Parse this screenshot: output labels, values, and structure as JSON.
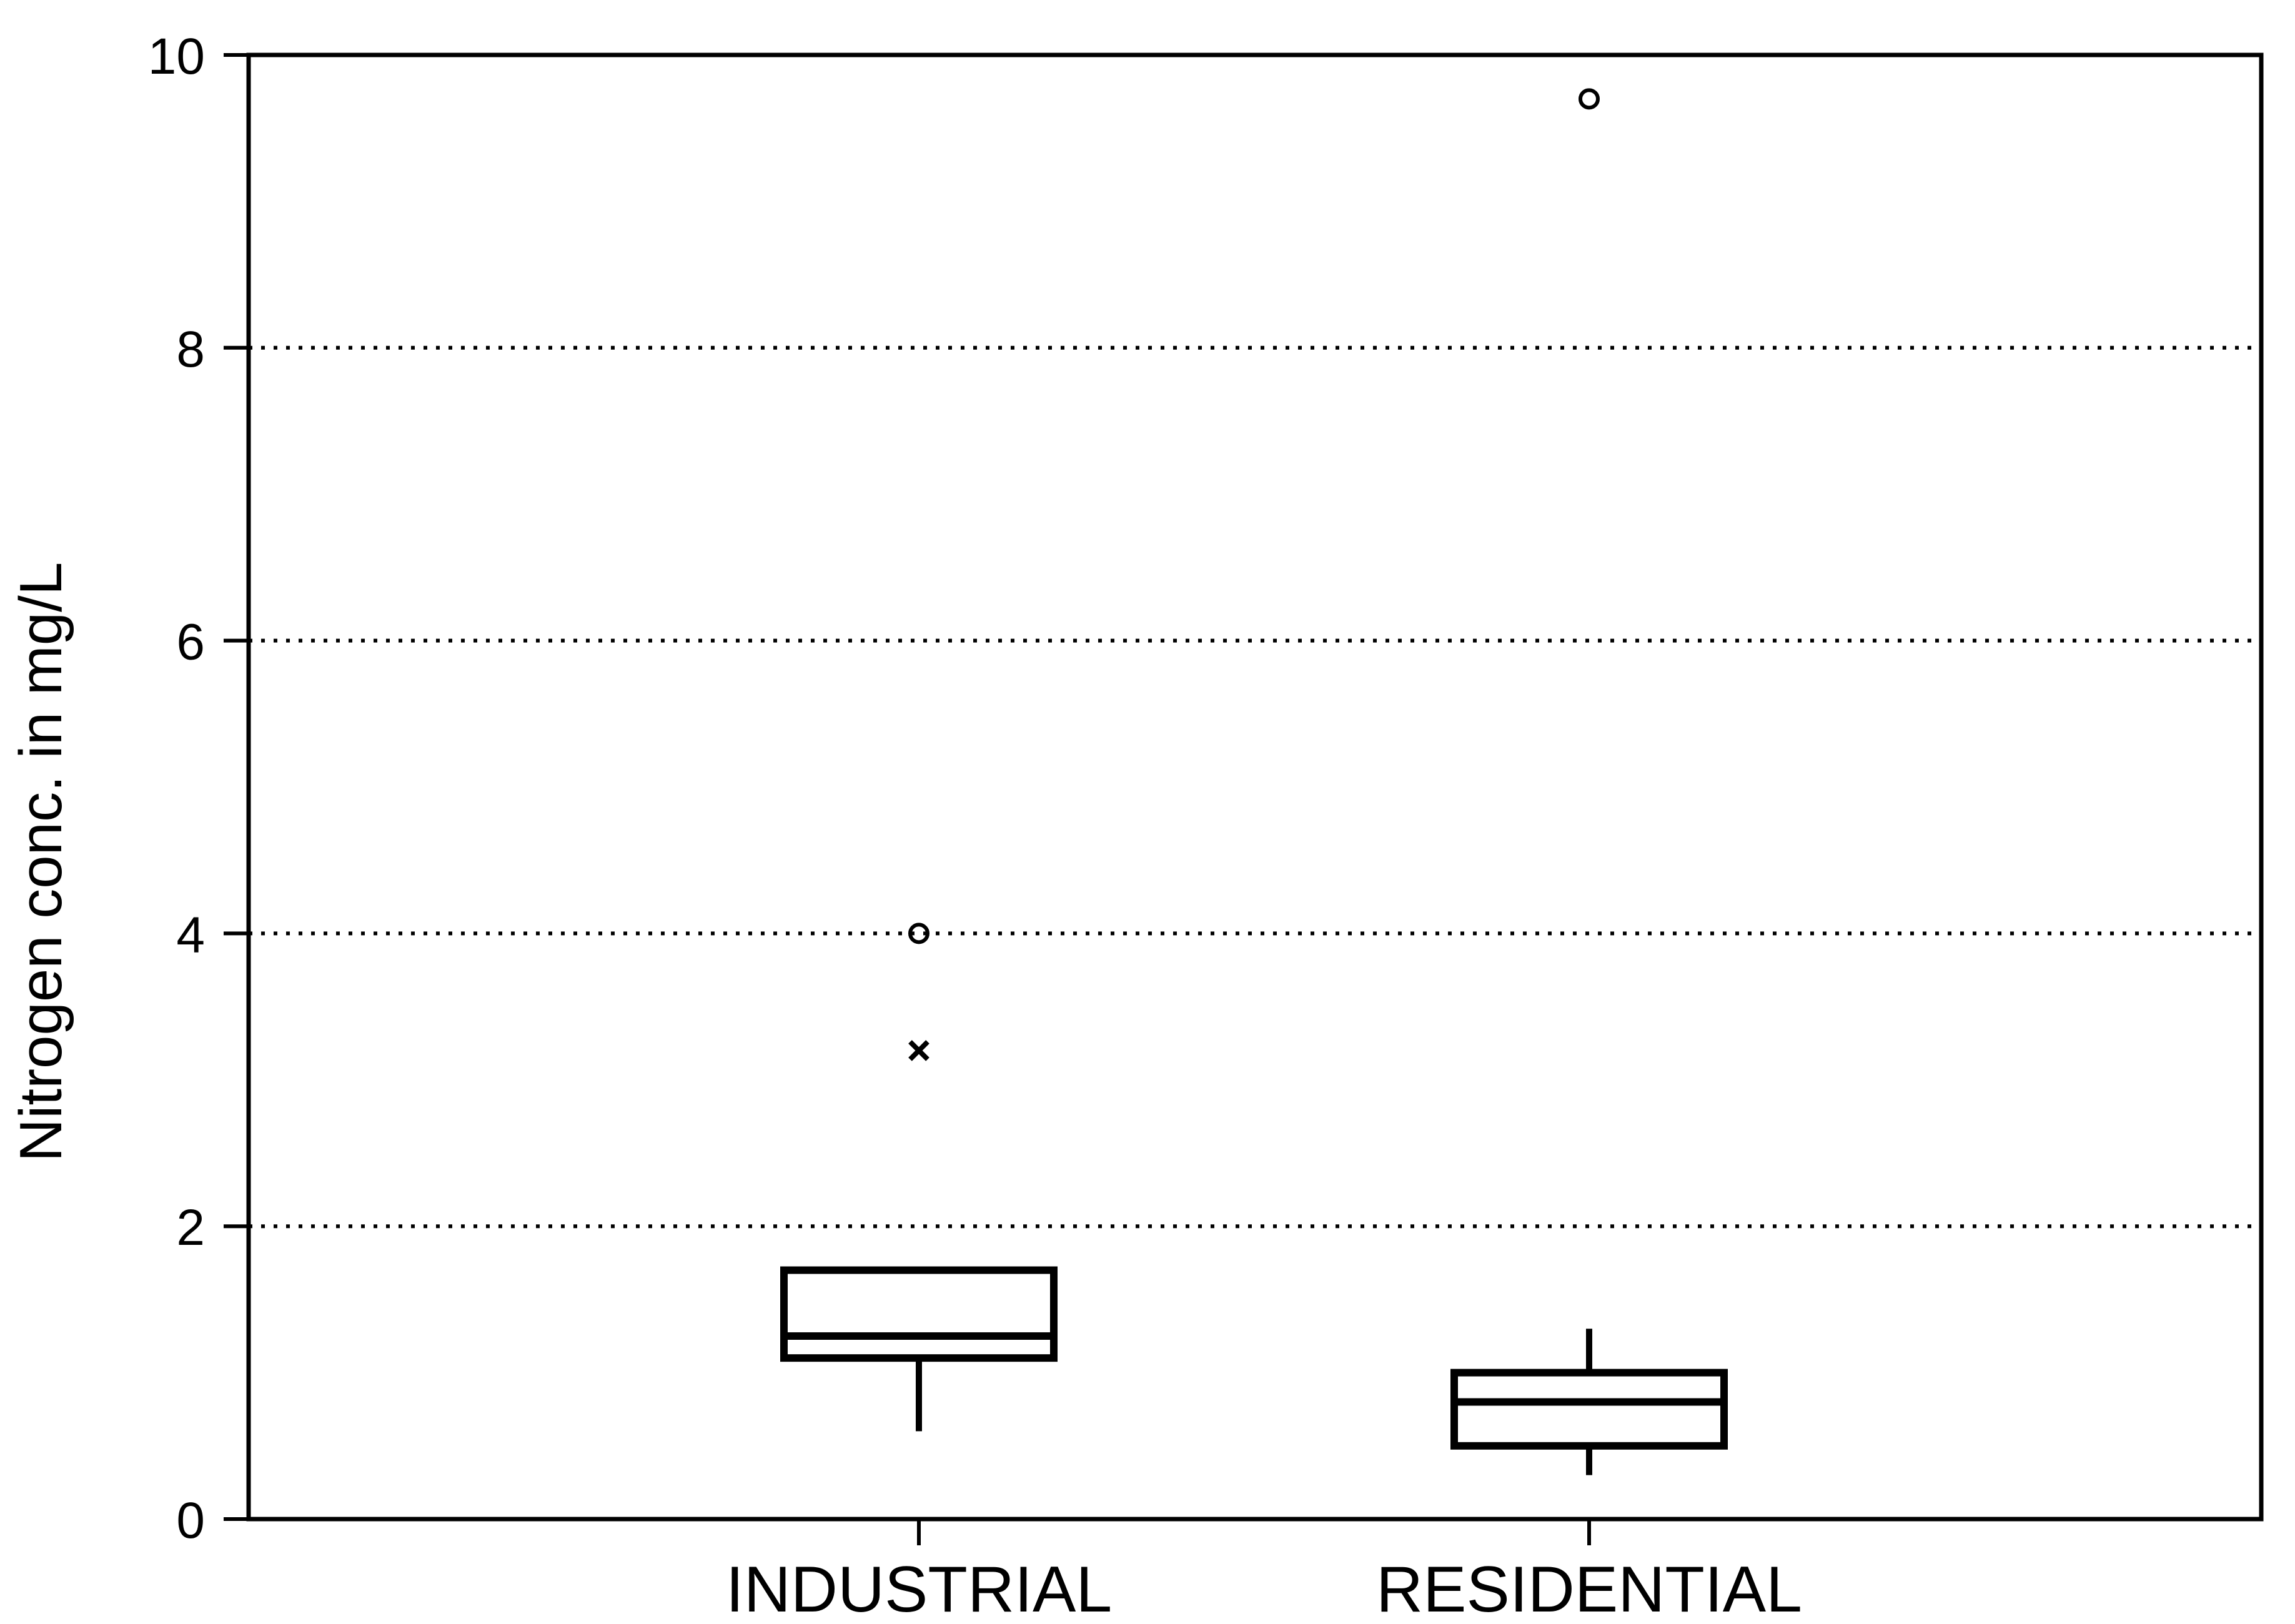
{
  "chart_data": {
    "type": "boxplot",
    "title": "",
    "xlabel": "",
    "ylabel": "Nitrogen conc.  in mg/L",
    "ylim": [
      0,
      10
    ],
    "yticks": [
      0,
      2,
      4,
      6,
      8,
      10
    ],
    "ytick_labels": [
      "0",
      "2",
      "4",
      "6",
      "8",
      "10"
    ],
    "grid": "horizontal dotted lines at 2, 4, 6, 8",
    "legend": "none",
    "categories": [
      "INDUSTRIAL",
      "RESIDENTIAL"
    ],
    "boxes": [
      {
        "category": "INDUSTRIAL",
        "whisker_low": 0.6,
        "q1": 1.1,
        "median": 1.25,
        "q3": 1.7,
        "whisker_high": 1.7,
        "outliers": [
          {
            "value": 3.2,
            "marker": "x"
          },
          {
            "value": 4.0,
            "marker": "o"
          }
        ]
      },
      {
        "category": "RESIDENTIAL",
        "whisker_low": 0.3,
        "q1": 0.5,
        "median": 0.8,
        "q3": 1.0,
        "whisker_high": 1.3,
        "outliers": [
          {
            "value": 9.7,
            "marker": "o"
          }
        ]
      }
    ],
    "colors": {
      "line": "#000000",
      "background": "#ffffff"
    }
  }
}
